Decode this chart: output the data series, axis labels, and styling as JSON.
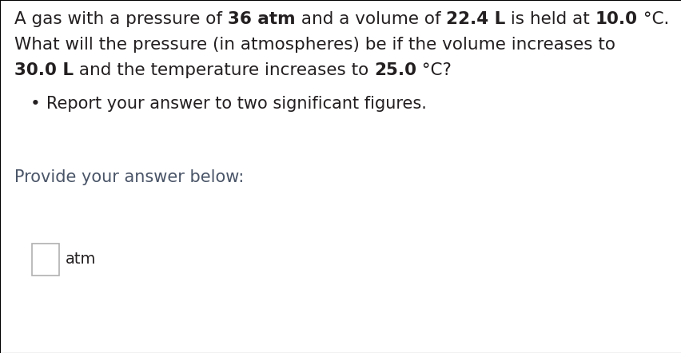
{
  "background_color": "#ffffff",
  "text_color": "#231f20",
  "provide_color": "#4a5568",
  "separator_color": "#cccccc",
  "box_border_color": "#b0b0b0",
  "box_fill_color": "#ffffff",
  "bottom_panel_color": "#ffffff",
  "bottom_border_color": "#cccccc",
  "line1_segments": [
    [
      "A gas with a pressure of ",
      false
    ],
    [
      "36 atm",
      true
    ],
    [
      " and a volume of ",
      false
    ],
    [
      "22.4 L",
      true
    ],
    [
      " is held at ",
      false
    ],
    [
      "10.0",
      true
    ],
    [
      " °C.",
      false
    ]
  ],
  "line2": "What will the pressure (in atmospheres) be if the volume increases to",
  "line3_segments": [
    [
      "30.0 L",
      true
    ],
    [
      " and the temperature increases to ",
      false
    ],
    [
      "25.0",
      true
    ],
    [
      " °C?",
      false
    ]
  ],
  "bullet_text": "Report your answer to two significant figures.",
  "provide_text": "Provide your answer below:",
  "unit_text": "atm",
  "font_size_main": 15.5,
  "font_size_bullet": 15,
  "font_size_provide": 15,
  "font_size_unit": 14,
  "fig_width": 8.53,
  "fig_height": 4.42,
  "dpi": 100
}
